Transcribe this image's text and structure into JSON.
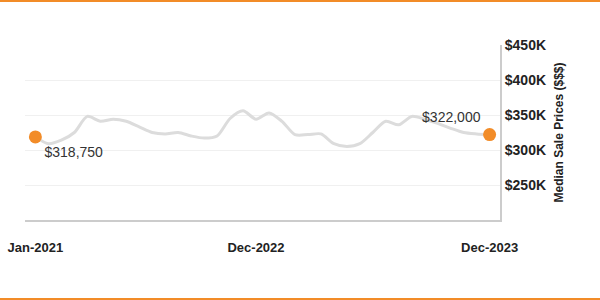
{
  "chart_data": {
    "type": "line",
    "categories": [
      "Jan-2021",
      null,
      null,
      null,
      null,
      null,
      null,
      null,
      null,
      null,
      null,
      null,
      null,
      null,
      null,
      null,
      null,
      "Dec-2022",
      null,
      null,
      null,
      null,
      null,
      null,
      null,
      null,
      null,
      null,
      null,
      null,
      null,
      null,
      null,
      null,
      null,
      "Dec-2023"
    ],
    "series": [
      {
        "name": "Median Sale Prices",
        "color": "#dcdcdc",
        "values": [
          318750,
          309000,
          314000,
          325000,
          348000,
          341000,
          344000,
          341000,
          333000,
          325000,
          323000,
          325000,
          320000,
          317000,
          320000,
          345000,
          356000,
          344000,
          353000,
          341000,
          322000,
          322000,
          323000,
          309000,
          305000,
          309000,
          325000,
          341000,
          336000,
          348000,
          344000,
          338000,
          331000,
          325000,
          323000,
          322000
        ],
        "value_labels": [
          "$318,750",
          null,
          null,
          null,
          null,
          null,
          null,
          null,
          null,
          null,
          null,
          null,
          null,
          null,
          null,
          null,
          null,
          null,
          null,
          null,
          null,
          null,
          null,
          null,
          null,
          null,
          null,
          null,
          null,
          null,
          null,
          null,
          null,
          null,
          null,
          "$322,000"
        ]
      }
    ],
    "y_label": "Median Sale Prices ($$$)",
    "ylim": [
      200000,
      450000
    ],
    "yticks": [
      {
        "value": 250000,
        "label": "$250K"
      },
      {
        "value": 300000,
        "label": "$300K"
      },
      {
        "value": 350000,
        "label": "$350K"
      },
      {
        "value": 400000,
        "label": "$400K"
      },
      {
        "value": 450000,
        "label": "$450K"
      }
    ],
    "grid": true,
    "data_labels": true,
    "marker": "circle"
  }
}
